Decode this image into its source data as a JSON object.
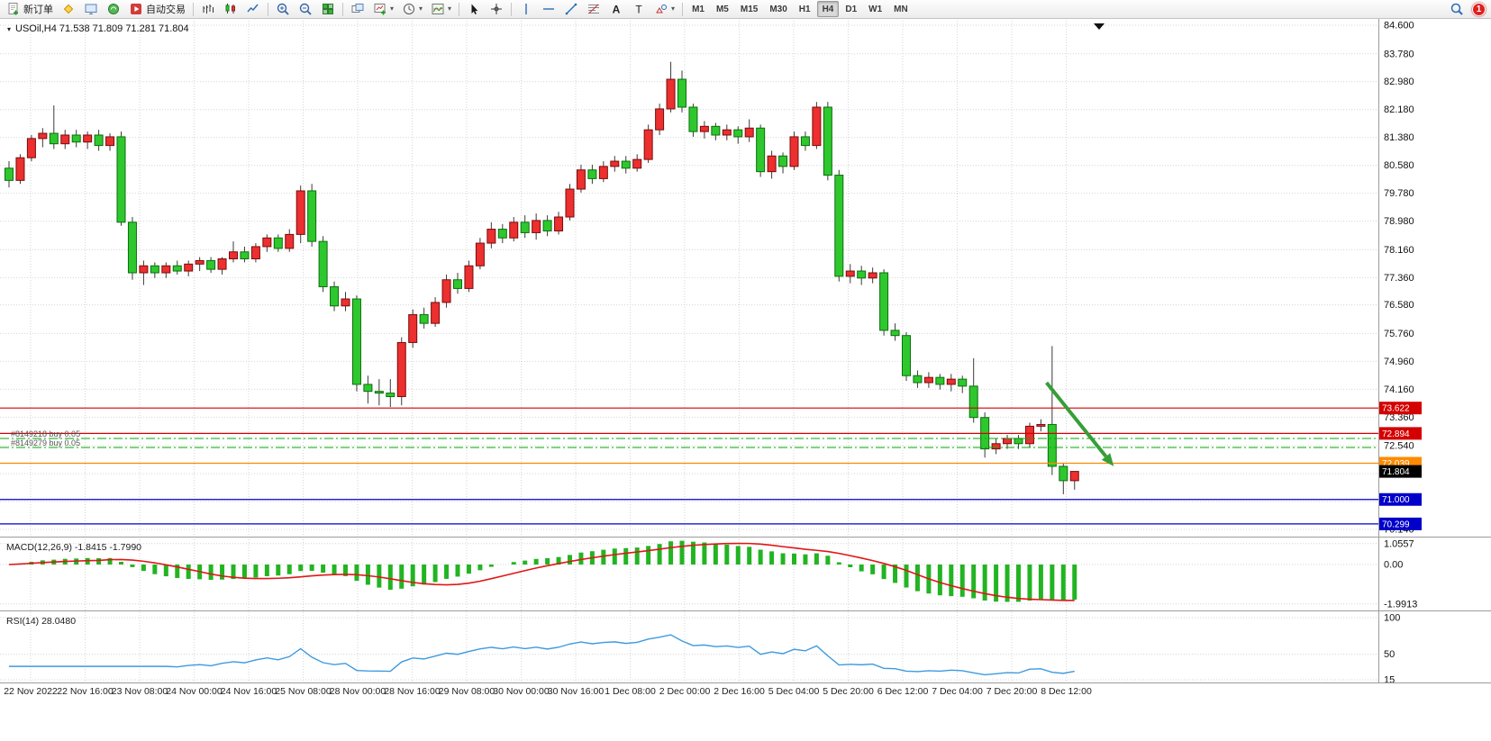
{
  "toolbar": {
    "new_order_label": "新订单",
    "autotrade_label": "自动交易",
    "notification_count": "1",
    "active_timeframe": "H4",
    "timeframes": [
      "M1",
      "M5",
      "M15",
      "M30",
      "H1",
      "H4",
      "D1",
      "W1",
      "MN"
    ],
    "groups": [
      {
        "items": [
          {
            "name": "new-order-button",
            "icon": "doc-plus",
            "label": "新订单"
          },
          {
            "name": "metaeditor-button",
            "icon": "diamond"
          },
          {
            "name": "data-window-button",
            "icon": "monitor"
          },
          {
            "name": "strategy-tester-button",
            "icon": "circle-wave"
          },
          {
            "name": "autotrade-button",
            "icon": "play",
            "label": "自动交易"
          }
        ]
      },
      {
        "items": [
          {
            "name": "bar-chart-button",
            "icon": "bars"
          },
          {
            "name": "candlestick-chart-button",
            "icon": "candles"
          },
          {
            "name": "line-chart-button",
            "icon": "linechart"
          }
        ]
      },
      {
        "items": [
          {
            "name": "zoom-in-button",
            "icon": "zoom-in"
          },
          {
            "name": "zoom-out-button",
            "icon": "zoom-out"
          },
          {
            "name": "tile-windows-button",
            "icon": "tile"
          }
        ]
      },
      {
        "items": [
          {
            "name": "cascade-windows-button",
            "icon": "cascade"
          },
          {
            "name": "new-chart-button",
            "icon": "chart-plus",
            "caret": true
          },
          {
            "name": "periods-button",
            "icon": "clock",
            "caret": true
          },
          {
            "name": "templates-button",
            "icon": "indicator",
            "caret": true
          }
        ]
      },
      {
        "items": [
          {
            "name": "cursor-button",
            "icon": "cursor"
          },
          {
            "name": "crosshair-button",
            "icon": "crosshair"
          }
        ]
      },
      {
        "items": [
          {
            "name": "vertical-line-button",
            "icon": "vline"
          },
          {
            "name": "horizontal-line-button",
            "icon": "hline"
          },
          {
            "name": "trendline-button",
            "icon": "trendline"
          },
          {
            "name": "fibonacci-button",
            "icon": "fibo"
          },
          {
            "name": "text-button",
            "icon": "textA"
          },
          {
            "name": "text-label-button",
            "icon": "textT"
          },
          {
            "name": "arrows-button",
            "icon": "shapes",
            "caret": true
          }
        ]
      }
    ]
  },
  "chart": {
    "symbol_line": "USOil,H4 71.538 71.809 71.281 71.804"
  },
  "chart_data": {
    "type": "candlestick",
    "symbol": "USOil",
    "period": "H4",
    "ohlc_readout": {
      "open": 71.538,
      "high": 71.809,
      "low": 71.281,
      "close": 71.804
    },
    "colors": {
      "bull": "#ec2f2f",
      "bull_stroke": "#7a0c0c",
      "bear": "#2ec82e",
      "bear_stroke": "#0c6e0c",
      "wick": "#3a3a3a",
      "macd_histogram": "#22b422",
      "macd_signal": "#e01616",
      "rsi_line": "#3e9adf",
      "grid": "#d6d6d6",
      "axis_text": "#111111",
      "arrow": "#379e37",
      "order_line": "#00a800"
    },
    "price_gridlines": [
      84.6,
      83.78,
      82.98,
      82.18,
      81.38,
      80.58,
      79.78,
      78.98,
      78.16,
      77.36,
      76.58,
      75.76,
      74.96,
      74.16,
      73.36,
      72.54,
      71.74,
      70.94,
      70.14
    ],
    "horizontal_lines": [
      {
        "price": 73.622,
        "color": "#d40000",
        "label": "73.622"
      },
      {
        "price": 72.894,
        "color": "#d40000",
        "label": "72.894"
      },
      {
        "price": 72.039,
        "color": "#ff8a00",
        "label": "72.039"
      },
      {
        "price": 71.0,
        "color": "#0000c8",
        "label": "71.000"
      },
      {
        "price": 70.299,
        "color": "#0000c8",
        "label": "70.299"
      }
    ],
    "open_orders": [
      {
        "text": "#8149218 buy 0.05",
        "price": 72.75
      },
      {
        "text": "#8149279 buy 0.05",
        "price": 72.49
      }
    ],
    "current_price": 71.804,
    "annotation_arrow": {
      "from_bar": 92.5,
      "from_price": 74.35,
      "to_bar": 98.5,
      "to_price": 71.95
    },
    "time_labels": [
      "22 Nov 2022",
      "22 Nov 16:00",
      "23 Nov 08:00",
      "24 Nov 00:00",
      "24 Nov 16:00",
      "25 Nov 08:00",
      "28 Nov 00:00",
      "28 Nov 16:00",
      "29 Nov 08:00",
      "30 Nov 00:00",
      "30 Nov 16:00",
      "1 Dec 08:00",
      "2 Dec 00:00",
      "2 Dec 16:00",
      "5 Dec 04:00",
      "5 Dec 20:00",
      "6 Dec 12:00",
      "7 Dec 04:00",
      "7 Dec 20:00",
      "8 Dec 12:00"
    ],
    "macd": {
      "header": "MACD(12,26,9) -1.8415 -1.7990",
      "fast": 12,
      "slow": 26,
      "signal": 9,
      "value": -1.8415,
      "signal_value": -1.799,
      "axis_labels": [
        {
          "v": 1.0557,
          "t": "1.0557"
        },
        {
          "v": 0,
          "t": "0.00"
        },
        {
          "v": -1.9913,
          "t": "-1.9913"
        }
      ]
    },
    "rsi": {
      "header": "RSI(14) 28.0480",
      "period": 14,
      "value": 28.048,
      "axis_labels": [
        {
          "v": 100,
          "t": "100"
        },
        {
          "v": 50,
          "t": "50"
        },
        {
          "v": 15,
          "t": "15"
        }
      ]
    },
    "ohlc": [
      [
        80.5,
        80.7,
        79.95,
        80.15
      ],
      [
        80.15,
        80.9,
        80.05,
        80.8
      ],
      [
        80.8,
        81.45,
        80.7,
        81.35
      ],
      [
        81.35,
        81.65,
        81.1,
        81.5
      ],
      [
        81.5,
        82.3,
        81.05,
        81.2
      ],
      [
        81.2,
        81.6,
        81.05,
        81.45
      ],
      [
        81.45,
        81.6,
        81.1,
        81.25
      ],
      [
        81.25,
        81.55,
        81.05,
        81.45
      ],
      [
        81.45,
        81.6,
        81.0,
        81.15
      ],
      [
        81.15,
        81.5,
        81.0,
        81.4
      ],
      [
        81.4,
        81.55,
        78.85,
        78.95
      ],
      [
        78.95,
        79.1,
        77.3,
        77.5
      ],
      [
        77.5,
        77.85,
        77.15,
        77.7
      ],
      [
        77.7,
        77.8,
        77.35,
        77.5
      ],
      [
        77.5,
        77.8,
        77.35,
        77.7
      ],
      [
        77.7,
        77.85,
        77.45,
        77.55
      ],
      [
        77.55,
        77.85,
        77.4,
        77.75
      ],
      [
        77.75,
        77.95,
        77.55,
        77.85
      ],
      [
        77.85,
        77.95,
        77.5,
        77.6
      ],
      [
        77.6,
        77.95,
        77.45,
        77.9
      ],
      [
        77.9,
        78.4,
        77.8,
        78.1
      ],
      [
        78.1,
        78.25,
        77.8,
        77.9
      ],
      [
        77.9,
        78.35,
        77.8,
        78.25
      ],
      [
        78.25,
        78.6,
        78.1,
        78.5
      ],
      [
        78.5,
        78.6,
        78.1,
        78.2
      ],
      [
        78.2,
        78.75,
        78.1,
        78.6
      ],
      [
        78.6,
        80.0,
        78.35,
        79.85
      ],
      [
        79.85,
        80.05,
        78.25,
        78.4
      ],
      [
        78.4,
        78.55,
        76.95,
        77.1
      ],
      [
        77.1,
        77.25,
        76.4,
        76.55
      ],
      [
        76.55,
        76.95,
        76.4,
        76.75
      ],
      [
        76.75,
        76.85,
        74.1,
        74.3
      ],
      [
        74.3,
        74.55,
        73.75,
        74.1
      ],
      [
        74.1,
        74.45,
        73.7,
        74.05
      ],
      [
        74.05,
        74.45,
        73.65,
        73.95
      ],
      [
        73.95,
        75.65,
        73.7,
        75.5
      ],
      [
        75.5,
        76.45,
        75.35,
        76.3
      ],
      [
        76.3,
        76.5,
        75.9,
        76.05
      ],
      [
        76.05,
        76.8,
        75.95,
        76.65
      ],
      [
        76.65,
        77.45,
        76.5,
        77.3
      ],
      [
        77.3,
        77.5,
        76.9,
        77.05
      ],
      [
        77.05,
        77.85,
        76.95,
        77.7
      ],
      [
        77.7,
        78.5,
        77.6,
        78.35
      ],
      [
        78.35,
        78.95,
        78.2,
        78.75
      ],
      [
        78.75,
        78.9,
        78.35,
        78.5
      ],
      [
        78.5,
        79.1,
        78.4,
        78.95
      ],
      [
        78.95,
        79.15,
        78.5,
        78.65
      ],
      [
        78.65,
        79.2,
        78.45,
        79.0
      ],
      [
        79.0,
        79.15,
        78.55,
        78.7
      ],
      [
        78.7,
        79.25,
        78.6,
        79.1
      ],
      [
        79.1,
        80.05,
        79.0,
        79.9
      ],
      [
        79.9,
        80.6,
        79.8,
        80.45
      ],
      [
        80.45,
        80.6,
        80.05,
        80.2
      ],
      [
        80.2,
        80.7,
        80.1,
        80.55
      ],
      [
        80.55,
        80.85,
        80.4,
        80.7
      ],
      [
        80.7,
        80.85,
        80.35,
        80.5
      ],
      [
        80.5,
        80.9,
        80.4,
        80.75
      ],
      [
        80.75,
        81.75,
        80.65,
        81.6
      ],
      [
        81.6,
        82.35,
        81.45,
        82.2
      ],
      [
        82.2,
        83.55,
        82.1,
        83.05
      ],
      [
        83.05,
        83.3,
        82.1,
        82.25
      ],
      [
        82.25,
        82.35,
        81.4,
        81.55
      ],
      [
        81.55,
        81.85,
        81.35,
        81.7
      ],
      [
        81.7,
        81.8,
        81.3,
        81.45
      ],
      [
        81.45,
        81.75,
        81.3,
        81.6
      ],
      [
        81.6,
        81.7,
        81.2,
        81.4
      ],
      [
        81.4,
        81.9,
        81.25,
        81.65
      ],
      [
        81.65,
        81.75,
        80.25,
        80.4
      ],
      [
        80.4,
        81.0,
        80.2,
        80.85
      ],
      [
        80.85,
        80.95,
        80.35,
        80.55
      ],
      [
        80.55,
        81.55,
        80.45,
        81.4
      ],
      [
        81.4,
        81.55,
        81.0,
        81.15
      ],
      [
        81.15,
        82.4,
        81.05,
        82.25
      ],
      [
        82.25,
        82.4,
        80.15,
        80.3
      ],
      [
        80.3,
        80.45,
        77.25,
        77.4
      ],
      [
        77.4,
        77.75,
        77.2,
        77.55
      ],
      [
        77.55,
        77.7,
        77.15,
        77.35
      ],
      [
        77.35,
        77.65,
        77.2,
        77.5
      ],
      [
        77.5,
        77.6,
        75.7,
        75.85
      ],
      [
        75.85,
        76.05,
        75.55,
        75.7
      ],
      [
        75.7,
        75.8,
        74.4,
        74.55
      ],
      [
        74.55,
        74.7,
        74.2,
        74.35
      ],
      [
        74.35,
        74.65,
        74.2,
        74.5
      ],
      [
        74.5,
        74.6,
        74.15,
        74.3
      ],
      [
        74.3,
        74.6,
        74.1,
        74.45
      ],
      [
        74.45,
        74.55,
        74.05,
        74.25
      ],
      [
        74.25,
        75.05,
        73.2,
        73.35
      ],
      [
        73.35,
        73.5,
        72.2,
        72.45
      ],
      [
        72.45,
        72.75,
        72.3,
        72.6
      ],
      [
        72.6,
        72.85,
        72.45,
        72.75
      ],
      [
        72.75,
        72.85,
        72.45,
        72.6
      ],
      [
        72.6,
        73.2,
        72.5,
        73.1
      ],
      [
        73.1,
        73.3,
        72.95,
        73.15
      ],
      [
        73.15,
        75.4,
        71.7,
        71.95
      ],
      [
        71.95,
        72.05,
        71.15,
        71.538
      ],
      [
        71.538,
        71.809,
        71.281,
        71.804
      ]
    ]
  }
}
